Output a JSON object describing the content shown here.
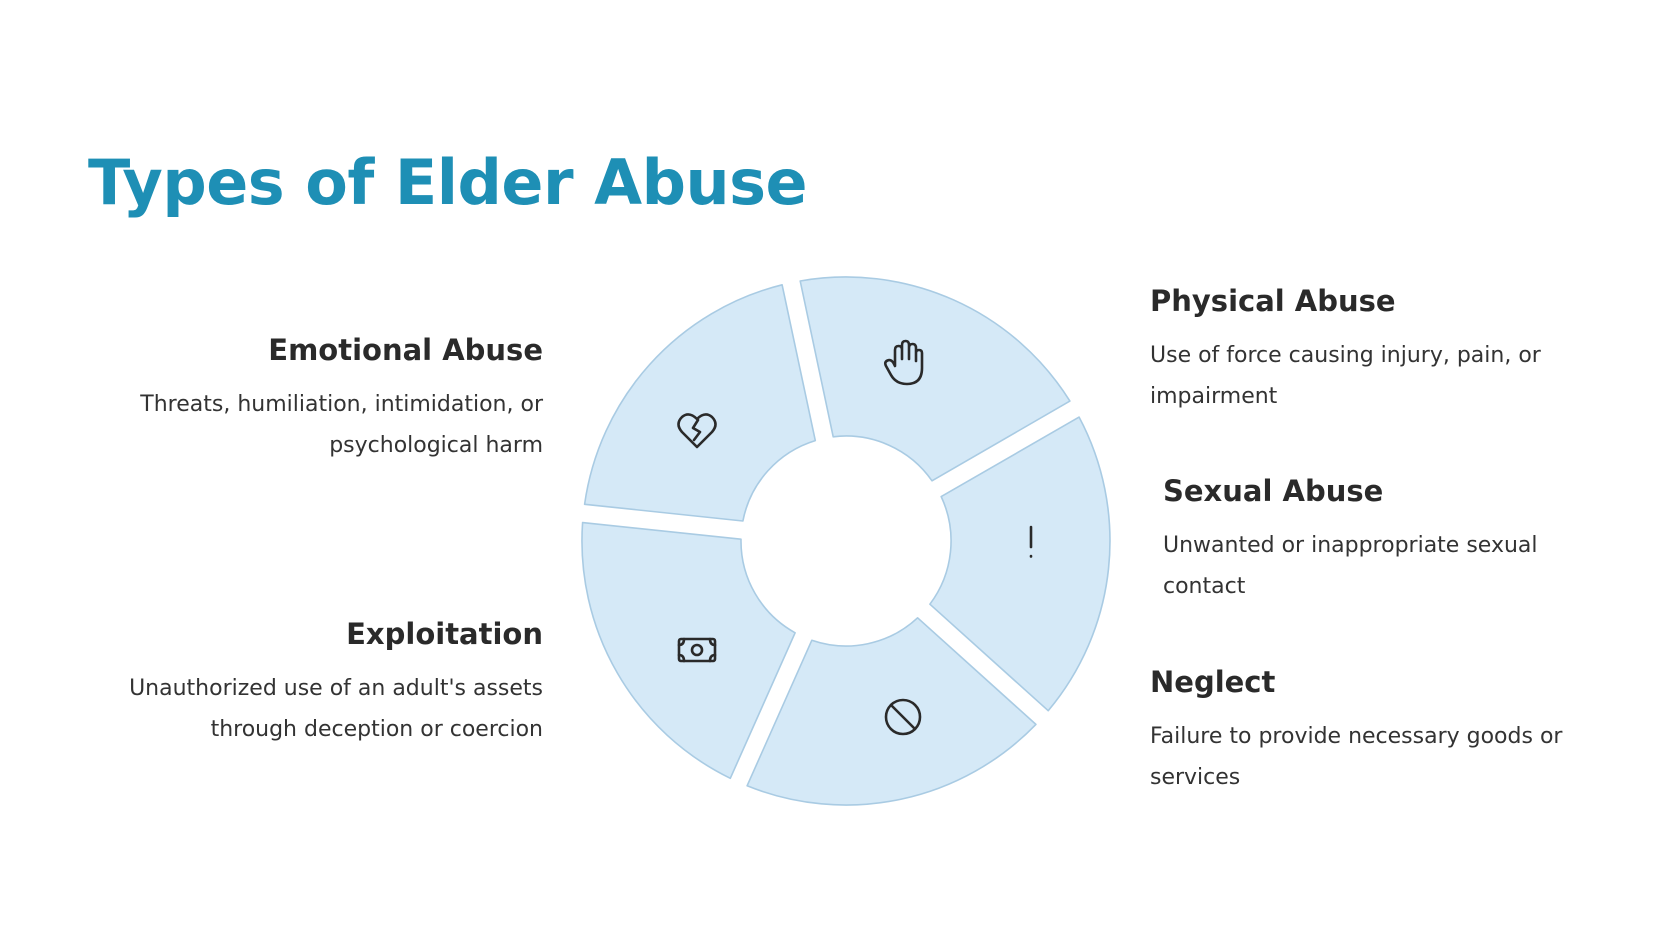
{
  "title": "Types of Elder Abuse",
  "colors": {
    "title": "#1e8fb5",
    "segment_fill": "#d5e9f7",
    "segment_stroke": "#a9cbe3",
    "heading": "#2a2a2a",
    "text": "#333333"
  },
  "items": [
    {
      "key": "physical",
      "heading": "Physical Abuse",
      "description": "Use of force causing injury, pain, or impairment",
      "icon": "hand-icon"
    },
    {
      "key": "sexual",
      "heading": "Sexual Abuse",
      "description": "Unwanted or inappropriate sexual contact",
      "icon": "exclamation-icon"
    },
    {
      "key": "neglect",
      "heading": "Neglect",
      "description": "Failure to provide necessary goods or services",
      "icon": "prohibited-icon"
    },
    {
      "key": "exploitation",
      "heading": "Exploitation",
      "description": "Unauthorized use of an adult's assets through deception or coercion",
      "icon": "banknote-icon"
    },
    {
      "key": "emotional",
      "heading": "Emotional Abuse",
      "description": "Threats, humiliation, intimidation, or psychological harm",
      "icon": "broken-heart-icon"
    }
  ]
}
